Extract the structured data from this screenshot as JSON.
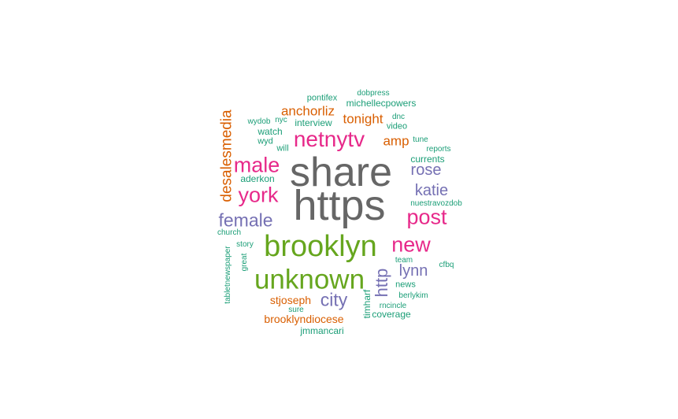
{
  "colors": {
    "gray": "#666666",
    "green": "#66a61e",
    "pink": "#e7298a",
    "purple": "#7570b3",
    "orange": "#d95f02",
    "teal": "#1b9e77"
  },
  "words": [
    {
      "text": "share",
      "color": "gray",
      "freq": 100
    },
    {
      "text": "https",
      "color": "gray",
      "freq": 98
    },
    {
      "text": "brooklyn",
      "color": "green",
      "freq": 62
    },
    {
      "text": "unknown",
      "color": "green",
      "freq": 58
    },
    {
      "text": "netnytv",
      "color": "pink",
      "freq": 45
    },
    {
      "text": "male",
      "color": "pink",
      "freq": 42
    },
    {
      "text": "york",
      "color": "pink",
      "freq": 40
    },
    {
      "text": "post",
      "color": "pink",
      "freq": 40
    },
    {
      "text": "new",
      "color": "pink",
      "freq": 40
    },
    {
      "text": "female",
      "color": "purple",
      "freq": 35
    },
    {
      "text": "city",
      "color": "purple",
      "freq": 32
    },
    {
      "text": "http",
      "color": "purple",
      "freq": 30
    },
    {
      "text": "katie",
      "color": "purple",
      "freq": 28
    },
    {
      "text": "rose",
      "color": "purple",
      "freq": 27
    },
    {
      "text": "lynn",
      "color": "purple",
      "freq": 27
    },
    {
      "text": "desalesmedia",
      "color": "orange",
      "freq": 25
    },
    {
      "text": "anchorliz",
      "color": "orange",
      "freq": 22
    },
    {
      "text": "tonight",
      "color": "orange",
      "freq": 22
    },
    {
      "text": "amp",
      "color": "orange",
      "freq": 22
    },
    {
      "text": "stjoseph",
      "color": "orange",
      "freq": 18
    },
    {
      "text": "brooklyndiocese",
      "color": "orange",
      "freq": 18
    },
    {
      "text": "michellecpowers",
      "color": "teal",
      "freq": 14
    },
    {
      "text": "currents",
      "color": "teal",
      "freq": 14
    },
    {
      "text": "watch",
      "color": "teal",
      "freq": 14
    },
    {
      "text": "interview",
      "color": "teal",
      "freq": 13
    },
    {
      "text": "aderkon",
      "color": "teal",
      "freq": 13
    },
    {
      "text": "timharf",
      "color": "teal",
      "freq": 13
    },
    {
      "text": "coverage",
      "color": "teal",
      "freq": 13
    },
    {
      "text": "jmmancari",
      "color": "teal",
      "freq": 13
    },
    {
      "text": "pontifex",
      "color": "teal",
      "freq": 12
    },
    {
      "text": "wyd",
      "color": "teal",
      "freq": 11
    },
    {
      "text": "will",
      "color": "teal",
      "freq": 11
    },
    {
      "text": "nuestravozdob",
      "color": "teal",
      "freq": 11
    },
    {
      "text": "news",
      "color": "teal",
      "freq": 11
    },
    {
      "text": "video",
      "color": "teal",
      "freq": 11
    },
    {
      "text": "wydob",
      "color": "teal",
      "freq": 10
    },
    {
      "text": "nyc",
      "color": "teal",
      "freq": 10
    },
    {
      "text": "dnc",
      "color": "teal",
      "freq": 10
    },
    {
      "text": "dobpress",
      "color": "teal",
      "freq": 10
    },
    {
      "text": "reports",
      "color": "teal",
      "freq": 10
    },
    {
      "text": "tune",
      "color": "teal",
      "freq": 10
    },
    {
      "text": "church",
      "color": "teal",
      "freq": 10
    },
    {
      "text": "story",
      "color": "teal",
      "freq": 10
    },
    {
      "text": "tabletnewspaper",
      "color": "teal",
      "freq": 10
    },
    {
      "text": "great",
      "color": "teal",
      "freq": 10
    },
    {
      "text": "team",
      "color": "teal",
      "freq": 10
    },
    {
      "text": "cfbq",
      "color": "teal",
      "freq": 10
    },
    {
      "text": "rncincle",
      "color": "teal",
      "freq": 10
    },
    {
      "text": "berlykim",
      "color": "teal",
      "freq": 10
    },
    {
      "text": "sure",
      "color": "teal",
      "freq": 10
    }
  ]
}
